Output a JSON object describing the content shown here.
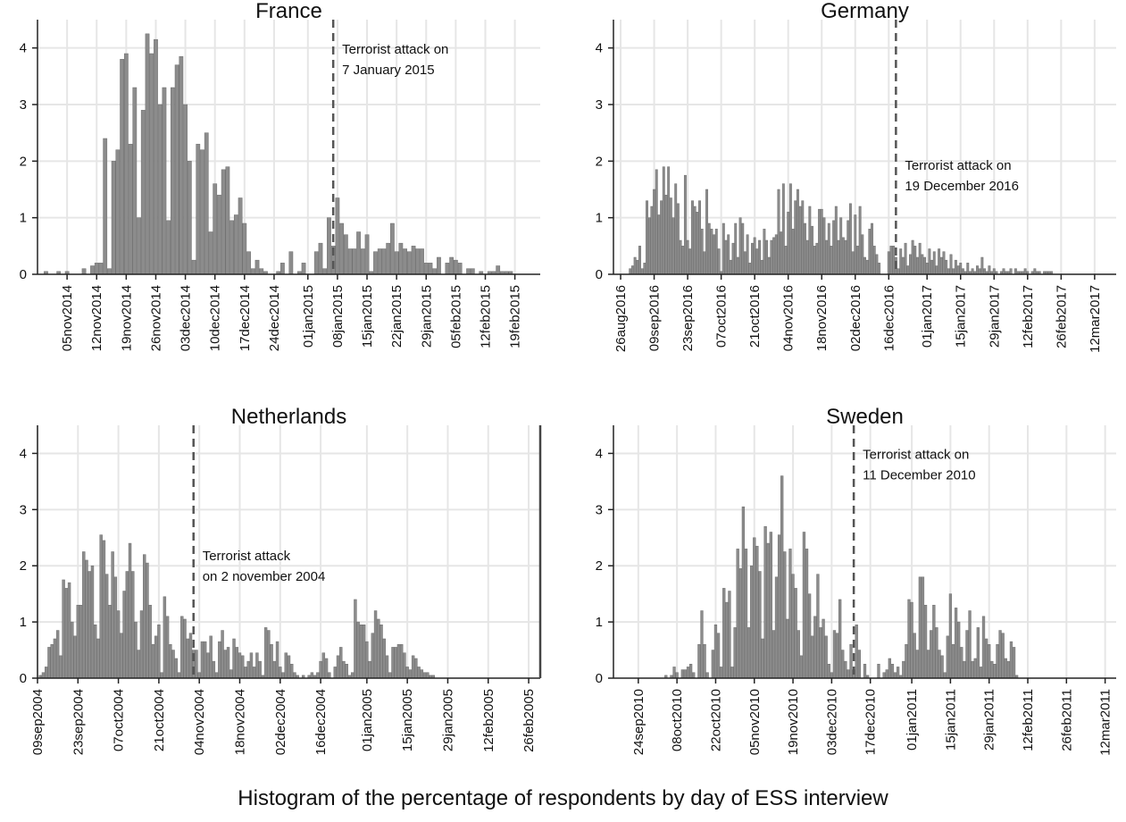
{
  "caption": "Histogram of the percentage of respondents by day of ESS interview",
  "colors": {
    "bar": "#8c8c8c",
    "bar_edge": "#6e6e6e",
    "grid": "#e6e6e6",
    "axis": "#222222",
    "event_line": "#555555"
  },
  "chart_data": [
    {
      "type": "bar",
      "title": "France",
      "xlabel": "",
      "ylabel": "",
      "ylim": [
        0,
        4.5
      ],
      "yticks": [
        0,
        1,
        2,
        3,
        4
      ],
      "xlim": [
        "2014-10-29",
        "2015-02-25"
      ],
      "xticks": [
        {
          "date": "2014-11-05",
          "label": "05nov2014"
        },
        {
          "date": "2014-11-12",
          "label": "12nov2014"
        },
        {
          "date": "2014-11-19",
          "label": "19nov2014"
        },
        {
          "date": "2014-11-26",
          "label": "26nov2014"
        },
        {
          "date": "2014-12-03",
          "label": "03dec2014"
        },
        {
          "date": "2014-12-10",
          "label": "10dec2014"
        },
        {
          "date": "2014-12-17",
          "label": "17dec2014"
        },
        {
          "date": "2014-12-24",
          "label": "24dec2014"
        },
        {
          "date": "2015-01-01",
          "label": "01jan2015"
        },
        {
          "date": "2015-01-08",
          "label": "08jan2015"
        },
        {
          "date": "2015-01-15",
          "label": "15jan2015"
        },
        {
          "date": "2015-01-22",
          "label": "22jan2015"
        },
        {
          "date": "2015-01-29",
          "label": "29jan2015"
        },
        {
          "date": "2015-02-05",
          "label": "05feb2015"
        },
        {
          "date": "2015-02-12",
          "label": "12feb2015"
        },
        {
          "date": "2015-02-19",
          "label": "19feb2015"
        }
      ],
      "start": "2014-10-31",
      "values": [
        0.05,
        0,
        0,
        0.05,
        0,
        0.05,
        0,
        0,
        0,
        0.1,
        0,
        0.15,
        0.2,
        0.2,
        2.4,
        0.1,
        2.0,
        2.2,
        3.8,
        3.9,
        2.3,
        3.3,
        1.0,
        2.9,
        4.25,
        3.9,
        4.15,
        3.0,
        3.3,
        0.95,
        3.3,
        3.7,
        3.85,
        3.0,
        2.0,
        0.25,
        2.3,
        2.2,
        2.5,
        0.75,
        1.6,
        1.4,
        1.85,
        1.9,
        0.95,
        1.05,
        1.35,
        0.9,
        0.4,
        0.1,
        0.25,
        0.1,
        0.05,
        0,
        0,
        0.05,
        0.2,
        0,
        0.4,
        0,
        0.05,
        0.2,
        0,
        0,
        0.4,
        0.55,
        0.1,
        1.0,
        0.5,
        1.35,
        0.9,
        0.7,
        0.45,
        0.45,
        0.75,
        0.45,
        0.7,
        0.05,
        0.4,
        0.45,
        0.45,
        0.55,
        0.9,
        0.4,
        0.55,
        0.45,
        0.4,
        0.5,
        0.45,
        0.45,
        0.2,
        0.2,
        0.1,
        0.3,
        0,
        0.2,
        0.3,
        0.25,
        0.2,
        0,
        0.1,
        0.1,
        0,
        0.05,
        0,
        0.05,
        0.05,
        0.15,
        0.05,
        0.05,
        0.05
      ],
      "event": {
        "date": "2015-01-07",
        "label_lines": [
          "Terrorist attack on",
          "7 January 2015"
        ]
      }
    },
    {
      "type": "bar",
      "title": "Germany",
      "xlabel": "",
      "ylabel": "",
      "ylim": [
        0,
        4.5
      ],
      "yticks": [
        0,
        1,
        2,
        3,
        4
      ],
      "xlim": [
        "2016-08-23",
        "2017-03-21"
      ],
      "xticks": [
        {
          "date": "2016-08-26",
          "label": "26aug2016"
        },
        {
          "date": "2016-09-09",
          "label": "09sep2016"
        },
        {
          "date": "2016-09-23",
          "label": "23sep2016"
        },
        {
          "date": "2016-10-07",
          "label": "07oct2016"
        },
        {
          "date": "2016-10-21",
          "label": "21oct2016"
        },
        {
          "date": "2016-11-04",
          "label": "04nov2016"
        },
        {
          "date": "2016-11-18",
          "label": "18nov2016"
        },
        {
          "date": "2016-12-02",
          "label": "02dec2016"
        },
        {
          "date": "2016-12-16",
          "label": "16dec2016"
        },
        {
          "date": "2017-01-01",
          "label": "01jan2017"
        },
        {
          "date": "2017-01-15",
          "label": "15jan2017"
        },
        {
          "date": "2017-01-29",
          "label": "29jan2017"
        },
        {
          "date": "2017-02-12",
          "label": "12feb2017"
        },
        {
          "date": "2017-02-26",
          "label": "26feb2017"
        },
        {
          "date": "2017-03-12",
          "label": "12mar2017"
        }
      ],
      "start": "2016-08-30",
      "values": [
        0.1,
        0.15,
        0.3,
        0.25,
        0.5,
        0.1,
        0.2,
        1.3,
        1.0,
        1.2,
        1.5,
        1.85,
        1.05,
        1.3,
        1.9,
        1.4,
        1.9,
        1.35,
        1.0,
        1.6,
        1.25,
        0.6,
        0.5,
        1.75,
        0.6,
        0.45,
        1.3,
        1.2,
        1.1,
        1.3,
        0.8,
        0.4,
        1.5,
        0.9,
        0.8,
        0.7,
        0.8,
        0.45,
        0.05,
        0.9,
        0.6,
        0.7,
        0.25,
        0.55,
        0.9,
        0.3,
        1.0,
        0.9,
        0.4,
        0.7,
        0.2,
        0.55,
        0.65,
        0.45,
        0.6,
        0.25,
        0.8,
        0.6,
        0.3,
        0.6,
        0.65,
        0.7,
        1.5,
        0.75,
        1.6,
        0.5,
        1.1,
        1.6,
        0.8,
        1.3,
        1.5,
        1.2,
        1.3,
        0.9,
        0.6,
        1.2,
        0.85,
        0.5,
        0.55,
        1.15,
        1.15,
        1.0,
        0.6,
        0.9,
        0.5,
        0.95,
        1.2,
        0.6,
        1.0,
        0.65,
        0.6,
        0.95,
        1.25,
        0.4,
        1.05,
        0.5,
        1.2,
        0.7,
        0.3,
        0.25,
        0.8,
        0.9,
        0.5,
        0.35,
        0.2,
        0,
        0,
        0,
        0.4,
        0.5,
        0.5,
        0.3,
        0.1,
        0.45,
        0.3,
        0.55,
        0.15,
        0.35,
        0.6,
        0.5,
        0.3,
        0.55,
        0.35,
        0.3,
        0.2,
        0.45,
        0.25,
        0.4,
        0.15,
        0.45,
        0.3,
        0.4,
        0.25,
        0.1,
        0.35,
        0.1,
        0.25,
        0.15,
        0.2,
        0.1,
        0.05,
        0.2,
        0.05,
        0.1,
        0.05,
        0.15,
        0.1,
        0.3,
        0.1,
        0.05,
        0.15,
        0.05,
        0.1,
        0.05,
        0,
        0.05,
        0.1,
        0.05,
        0.05,
        0.1,
        0,
        0.1,
        0.05,
        0.05,
        0.05,
        0.1,
        0.05,
        0,
        0.05,
        0.1,
        0.05,
        0.05,
        0,
        0.05,
        0.05,
        0.05,
        0.05
      ],
      "event": {
        "date": "2016-12-19",
        "label_lines": [
          "Terrorist attack on",
          "19 December 2016"
        ]
      }
    },
    {
      "type": "bar",
      "title": "Netherlands",
      "xlabel": "",
      "ylabel": "",
      "ylim": [
        0,
        4.5
      ],
      "yticks": [
        0,
        1,
        2,
        3,
        4
      ],
      "xlim": [
        "2004-09-09",
        "2005-03-02"
      ],
      "xticks": [
        {
          "date": "2004-09-09",
          "label": "09sep2004"
        },
        {
          "date": "2004-09-23",
          "label": "23sep2004"
        },
        {
          "date": "2004-10-07",
          "label": "07oct2004"
        },
        {
          "date": "2004-10-21",
          "label": "21oct2004"
        },
        {
          "date": "2004-11-04",
          "label": "04nov2004"
        },
        {
          "date": "2004-11-18",
          "label": "18nov2004"
        },
        {
          "date": "2004-12-02",
          "label": "02dec2004"
        },
        {
          "date": "2004-12-16",
          "label": "16dec2004"
        },
        {
          "date": "2005-01-01",
          "label": "01jan2005"
        },
        {
          "date": "2005-01-15",
          "label": "15jan2005"
        },
        {
          "date": "2005-01-29",
          "label": "29jan2005"
        },
        {
          "date": "2005-02-12",
          "label": "12feb2005"
        },
        {
          "date": "2005-02-26",
          "label": "26feb2005"
        }
      ],
      "start": "2004-09-10",
      "values": [
        0.05,
        0.1,
        0.2,
        0.55,
        0.6,
        0.7,
        0.85,
        0.4,
        1.75,
        1.6,
        1.7,
        1.0,
        0.75,
        1.3,
        1.3,
        2.25,
        2.1,
        1.9,
        2.0,
        0.95,
        0.7,
        2.55,
        2.45,
        1.85,
        1.3,
        2.25,
        1.8,
        1.2,
        0.8,
        1.55,
        1.9,
        2.4,
        1.9,
        1.0,
        0.5,
        1.2,
        2.2,
        2.05,
        1.3,
        0.6,
        0.75,
        0.95,
        0.1,
        1.45,
        1.1,
        0.6,
        0.5,
        0.35,
        0.1,
        1.1,
        1.05,
        0.7,
        0.8,
        0.5,
        0.5,
        0.1,
        0.65,
        0.65,
        0.45,
        0.75,
        0.3,
        0.1,
        0.65,
        0.85,
        0.5,
        0.55,
        0.15,
        0.7,
        0.55,
        0.45,
        0.4,
        0.2,
        0.3,
        0.45,
        0.2,
        0.45,
        0.3,
        0.05,
        0.9,
        0.85,
        0.6,
        0.3,
        0.65,
        0.2,
        0.1,
        0.45,
        0.4,
        0.25,
        0.1,
        0.05,
        0,
        0.05,
        0,
        0.05,
        0.1,
        0.05,
        0.1,
        0.3,
        0.45,
        0.35,
        0.1,
        0,
        0.2,
        0.4,
        0.55,
        0.3,
        0.25,
        0.05,
        0.1,
        1.4,
        1.0,
        0.95,
        0.95,
        0.65,
        0.3,
        0.8,
        1.2,
        1.05,
        0.95,
        0.7,
        0.4,
        0.1,
        0.55,
        0.55,
        0.6,
        0.6,
        0.45,
        0.2,
        0.15,
        0.4,
        0.35,
        0.2,
        0.15,
        0.1,
        0.1,
        0.05,
        0.05,
        0,
        0,
        0,
        0,
        0
      ],
      "event": {
        "date": "2004-11-02",
        "label_lines": [
          "Terrorist attack",
          "on 2 november 2004"
        ]
      }
    },
    {
      "type": "bar",
      "title": "Sweden",
      "xlabel": "",
      "ylabel": "",
      "ylim": [
        0,
        4.5
      ],
      "yticks": [
        0,
        1,
        2,
        3,
        4
      ],
      "xlim": [
        "2010-09-15",
        "2011-03-16"
      ],
      "xticks": [
        {
          "date": "2010-09-24",
          "label": "24sep2010"
        },
        {
          "date": "2010-10-08",
          "label": "08oct2010"
        },
        {
          "date": "2010-10-22",
          "label": "22oct2010"
        },
        {
          "date": "2010-11-05",
          "label": "05nov2010"
        },
        {
          "date": "2010-11-19",
          "label": "19nov2010"
        },
        {
          "date": "2010-12-03",
          "label": "03dec2010"
        },
        {
          "date": "2010-12-17",
          "label": "17dec2010"
        },
        {
          "date": "2011-01-01",
          "label": "01jan2011"
        },
        {
          "date": "2011-01-15",
          "label": "15jan2011"
        },
        {
          "date": "2011-01-29",
          "label": "29jan2011"
        },
        {
          "date": "2011-02-12",
          "label": "12feb2011"
        },
        {
          "date": "2011-02-26",
          "label": "26feb2011"
        },
        {
          "date": "2011-03-12",
          "label": "12mar2011"
        }
      ],
      "start": "2010-10-04",
      "values": [
        0.05,
        0,
        0.05,
        0.2,
        0.1,
        0,
        0.15,
        0.15,
        0.2,
        0.25,
        0.1,
        0,
        0.6,
        1.2,
        0.6,
        0.1,
        0,
        0.5,
        0.95,
        0.8,
        0.2,
        1.6,
        1.35,
        1.55,
        0.2,
        0.9,
        2.3,
        1.95,
        3.05,
        2.3,
        0.9,
        2.0,
        2.5,
        2.35,
        1.9,
        0.7,
        2.7,
        2.4,
        2.6,
        0.85,
        1.8,
        2.55,
        3.6,
        2.25,
        1.05,
        2.3,
        1.85,
        1.6,
        0.85,
        0.4,
        2.6,
        2.3,
        1.5,
        0.75,
        1.1,
        1.85,
        0.9,
        1.05,
        0.75,
        0.25,
        0.1,
        0.85,
        0.8,
        1.4,
        0.5,
        0.3,
        0.15,
        0.6,
        0.15,
        0.95,
        0.5,
        0,
        0.25,
        0.05,
        0,
        0,
        0,
        0.25,
        0,
        0.1,
        0.15,
        0.35,
        0.25,
        0.1,
        0.2,
        0.05,
        0.3,
        0.6,
        1.4,
        1.35,
        0.8,
        0.5,
        1.8,
        1.8,
        1.3,
        0.5,
        0.85,
        1.3,
        0.9,
        0.5,
        0.4,
        0.1,
        0.75,
        1.5,
        0.6,
        1.25,
        1.0,
        0.55,
        0.3,
        0.85,
        1.2,
        0.3,
        0.35,
        0.9,
        0.2,
        1.1,
        0.7,
        0.6,
        0.3,
        0.25,
        0.6,
        0.85,
        0.8,
        0.35,
        0.3,
        0.65,
        0.55,
        0.05,
        0,
        0,
        0
      ],
      "event": {
        "date": "2010-12-11",
        "label_lines": [
          "Terrorist attack on",
          "11 December 2010"
        ]
      }
    }
  ]
}
